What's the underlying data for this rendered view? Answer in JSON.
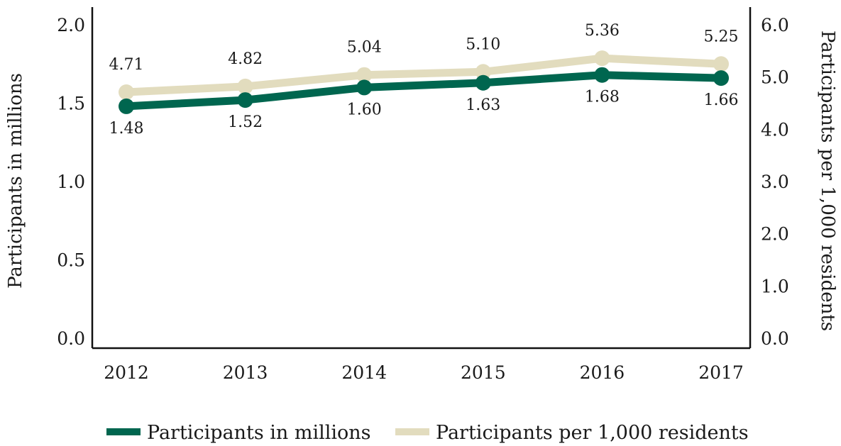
{
  "chart_data": {
    "type": "line",
    "x": [
      "2012",
      "2013",
      "2014",
      "2015",
      "2016",
      "2017"
    ],
    "series": [
      {
        "name": "Participants in millions",
        "axis": "left",
        "color": "#00664f",
        "values": [
          1.48,
          1.52,
          1.6,
          1.63,
          1.68,
          1.66
        ],
        "labels": [
          "1.48",
          "1.52",
          "1.60",
          "1.63",
          "1.68",
          "1.66"
        ]
      },
      {
        "name": "Participants per 1,000 residents",
        "axis": "right",
        "color": "#e2dcbe",
        "values": [
          4.71,
          4.82,
          5.04,
          5.1,
          5.36,
          5.25
        ],
        "labels": [
          "4.71",
          "4.82",
          "5.04",
          "5.10",
          "5.36",
          "5.25"
        ]
      }
    ],
    "y_left": {
      "label": "Participants in millions",
      "range": [
        0,
        2.0
      ],
      "ticks": [
        "0.0",
        "0.5",
        "1.0",
        "1.5",
        "2.0"
      ]
    },
    "y_right": {
      "label": "Participants per 1,000 residents",
      "range": [
        0,
        6.0
      ],
      "ticks": [
        "0.0",
        "1.0",
        "2.0",
        "3.0",
        "4.0",
        "5.0",
        "6.0"
      ]
    },
    "legend": {
      "placement": "bottom"
    },
    "grid": false
  }
}
